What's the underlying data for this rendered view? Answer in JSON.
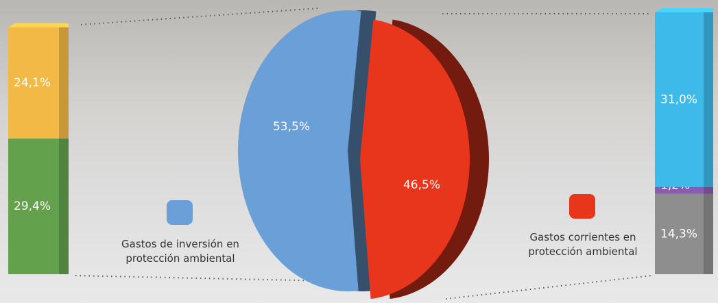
{
  "chart_data": [
    {
      "type": "pie",
      "categories": [
        "Gastos de inversión en protección ambiental",
        "Gastos corrientes en protección ambiental"
      ],
      "values": [
        53.5,
        46.5
      ],
      "value_labels": [
        "53,5%",
        "46,5%"
      ],
      "colors": [
        "#6b9fd8",
        "#e8361d"
      ]
    },
    {
      "type": "stacked_bar",
      "series": [
        {
          "color": "#63a14c",
          "values": [
            29.4
          ],
          "value_labels": [
            "29,4%"
          ]
        },
        {
          "color": "#f3b947",
          "values": [
            24.1
          ],
          "value_labels": [
            "24,1%"
          ]
        }
      ]
    },
    {
      "type": "stacked_bar",
      "series": [
        {
          "color": "#8e8e8e",
          "values": [
            14.3
          ],
          "value_labels": [
            "14,3%"
          ]
        },
        {
          "color": "#8a5bb3",
          "values": [
            1.2
          ],
          "value_labels": [
            "1,2%"
          ]
        },
        {
          "color": "#3db9ea",
          "values": [
            31.0
          ],
          "value_labels": [
            "31,0%"
          ]
        }
      ]
    }
  ]
}
